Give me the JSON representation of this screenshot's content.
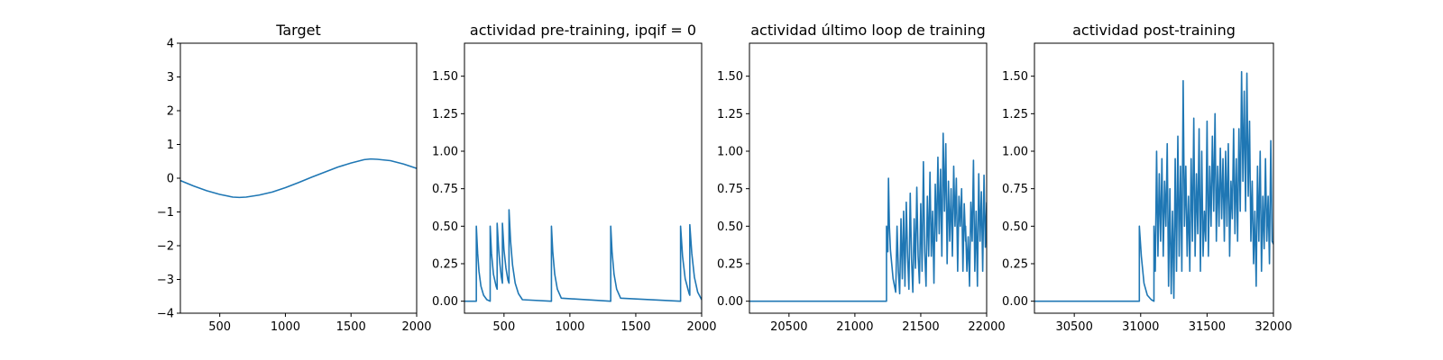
{
  "colors": {
    "line": "#1f77b4",
    "axis": "#000000",
    "background": "#ffffff"
  },
  "chart_data": [
    {
      "type": "line",
      "title": "Target",
      "xlabel": "",
      "ylabel": "",
      "xlim": [
        200,
        2000
      ],
      "ylim": [
        -4,
        4
      ],
      "xticks": [
        500,
        1000,
        1500,
        2000
      ],
      "yticks": [
        -4,
        -3,
        -2,
        -1,
        0,
        1,
        2,
        3,
        4
      ],
      "ytick_labels": [
        "−4",
        "−3",
        "−2",
        "−1",
        "0",
        "1",
        "2",
        "3",
        "4"
      ],
      "grid": false,
      "series": [
        {
          "x": [
            200,
            300,
            400,
            500,
            600,
            650,
            700,
            800,
            900,
            1000,
            1100,
            1200,
            1300,
            1400,
            1500,
            1600,
            1650,
            1700,
            1800,
            1900,
            2000
          ],
          "y": [
            -0.07,
            -0.23,
            -0.37,
            -0.48,
            -0.56,
            -0.57,
            -0.56,
            -0.5,
            -0.41,
            -0.28,
            -0.13,
            0.03,
            0.18,
            0.33,
            0.45,
            0.55,
            0.57,
            0.56,
            0.52,
            0.42,
            0.29
          ]
        }
      ]
    },
    {
      "type": "line",
      "title": "actividad pre-training, ipqif = 0",
      "xlabel": "",
      "ylabel": "",
      "xlim": [
        200,
        2000
      ],
      "ylim": [
        -0.08,
        1.72
      ],
      "xticks": [
        500,
        1000,
        1500,
        2000
      ],
      "yticks": [
        0.0,
        0.25,
        0.5,
        0.75,
        1.0,
        1.25,
        1.5
      ],
      "ytick_labels": [
        "0.00",
        "0.25",
        "0.50",
        "0.75",
        "1.00",
        "1.25",
        "1.50"
      ],
      "grid": false,
      "series": [
        {
          "x": [
            200,
            290,
            290,
            300,
            310,
            325,
            345,
            370,
            395,
            395,
            405,
            420,
            440,
            448,
            448,
            460,
            470,
            480,
            488,
            488,
            500,
            515,
            530,
            538,
            538,
            550,
            565,
            585,
            610,
            640,
            860,
            860,
            870,
            885,
            905,
            935,
            1310,
            1310,
            1320,
            1335,
            1355,
            1385,
            1840,
            1840,
            1855,
            1875,
            1905,
            1910,
            1910,
            1925,
            1945,
            1970,
            2000
          ],
          "y": [
            0,
            0,
            0.5,
            0.32,
            0.2,
            0.1,
            0.04,
            0.01,
            0.0,
            0.5,
            0.32,
            0.18,
            0.1,
            0.08,
            0.52,
            0.34,
            0.24,
            0.16,
            0.12,
            0.52,
            0.34,
            0.22,
            0.14,
            0.12,
            0.61,
            0.4,
            0.24,
            0.12,
            0.05,
            0.01,
            0,
            0.5,
            0.33,
            0.18,
            0.08,
            0.02,
            0,
            0.5,
            0.33,
            0.18,
            0.08,
            0.02,
            0,
            0.5,
            0.3,
            0.15,
            0.05,
            0.04,
            0.51,
            0.32,
            0.16,
            0.06,
            0.01
          ]
        }
      ]
    },
    {
      "type": "line",
      "title": "actividad último loop de training",
      "xlabel": "",
      "ylabel": "",
      "xlim": [
        20200,
        22000
      ],
      "ylim": [
        -0.08,
        1.72
      ],
      "xticks": [
        20500,
        21000,
        21500,
        22000
      ],
      "yticks": [
        0.0,
        0.25,
        0.5,
        0.75,
        1.0,
        1.25,
        1.5
      ],
      "ytick_labels": [
        "0.00",
        "0.25",
        "0.50",
        "0.75",
        "1.00",
        "1.25",
        "1.50"
      ],
      "grid": false,
      "series": [
        {
          "x": [
            20200,
            21240,
            21240,
            21250,
            21255,
            21262,
            21270,
            21290,
            21310,
            21320,
            21330,
            21340,
            21350,
            21360,
            21370,
            21380,
            21390,
            21400,
            21410,
            21420,
            21430,
            21440,
            21450,
            21460,
            21470,
            21480,
            21490,
            21500,
            21510,
            21520,
            21530,
            21540,
            21550,
            21560,
            21570,
            21580,
            21590,
            21600,
            21610,
            21620,
            21630,
            21640,
            21650,
            21660,
            21670,
            21680,
            21690,
            21700,
            21710,
            21720,
            21730,
            21740,
            21750,
            21760,
            21770,
            21780,
            21790,
            21800,
            21810,
            21820,
            21830,
            21840,
            21840,
            21850,
            21860,
            21870,
            21880,
            21890,
            21900,
            21910,
            21920,
            21930,
            21940,
            21950,
            21960,
            21970,
            21980,
            21990,
            22000
          ],
          "y": [
            0,
            0,
            0.5,
            0.33,
            0.82,
            0.5,
            0.34,
            0.15,
            0.06,
            0.5,
            0.2,
            0.05,
            0.55,
            0.15,
            0.6,
            0.1,
            0.66,
            0.3,
            0.08,
            0.72,
            0.28,
            0.06,
            0.55,
            0.22,
            0.76,
            0.3,
            0.12,
            0.65,
            0.2,
            0.93,
            0.33,
            0.1,
            0.7,
            0.3,
            0.86,
            0.3,
            0.6,
            0.12,
            0.78,
            0.4,
            0.96,
            0.45,
            0.88,
            0.3,
            1.12,
            0.6,
            1.05,
            0.25,
            0.8,
            0.4,
            0.75,
            0.3,
            0.9,
            0.5,
            0.82,
            0.2,
            0.7,
            0.5,
            0.75,
            0.2,
            0.65,
            0.4,
            0.5,
            0.2,
            0.43,
            0.1,
            0.66,
            0.4,
            0.94,
            0.2,
            0.6,
            0.1,
            0.85,
            0.4,
            0.73,
            0.2,
            0.84,
            0.36,
            0.66
          ]
        }
      ]
    },
    {
      "type": "line",
      "title": "actividad post-training",
      "xlabel": "",
      "ylabel": "",
      "xlim": [
        30200,
        32000
      ],
      "ylim": [
        -0.08,
        1.72
      ],
      "xticks": [
        30500,
        31000,
        31500,
        32000
      ],
      "yticks": [
        0.0,
        0.25,
        0.5,
        0.75,
        1.0,
        1.25,
        1.5
      ],
      "ytick_labels": [
        "0.00",
        "0.25",
        "0.50",
        "0.75",
        "1.00",
        "1.25",
        "1.50"
      ],
      "grid": false,
      "series": [
        {
          "x": [
            30200,
            30990,
            30990,
            31005,
            31025,
            31050,
            31080,
            31100,
            31100,
            31110,
            31120,
            31130,
            31140,
            31150,
            31160,
            31170,
            31180,
            31190,
            31200,
            31210,
            31220,
            31230,
            31240,
            31250,
            31260,
            31270,
            31280,
            31290,
            31300,
            31310,
            31320,
            31330,
            31340,
            31350,
            31360,
            31370,
            31380,
            31390,
            31400,
            31410,
            31420,
            31430,
            31440,
            31450,
            31460,
            31470,
            31480,
            31490,
            31500,
            31510,
            31520,
            31530,
            31540,
            31550,
            31560,
            31570,
            31580,
            31590,
            31600,
            31610,
            31620,
            31630,
            31640,
            31650,
            31660,
            31670,
            31680,
            31690,
            31700,
            31710,
            31720,
            31730,
            31740,
            31750,
            31760,
            31770,
            31780,
            31790,
            31800,
            31810,
            31820,
            31830,
            31840,
            31850,
            31860,
            31870,
            31880,
            31890,
            31900,
            31910,
            31920,
            31930,
            31940,
            31950,
            31960,
            31970,
            31980,
            31990,
            32000
          ],
          "y": [
            0,
            0,
            0.5,
            0.3,
            0.12,
            0.04,
            0.01,
            0.0,
            0.5,
            0.2,
            1.0,
            0.3,
            0.85,
            0.4,
            0.95,
            0.3,
            0.8,
            0.5,
            1.05,
            0.1,
            0.75,
            0.05,
            0.6,
            0.02,
            0.95,
            0.2,
            1.1,
            0.3,
            0.9,
            0.2,
            1.47,
            0.5,
            0.9,
            0.3,
            0.7,
            0.2,
            0.95,
            0.4,
            1.22,
            0.3,
            0.85,
            0.45,
            1.15,
            0.2,
            1.0,
            0.3,
            0.6,
            0.4,
            1.2,
            0.3,
            0.9,
            0.5,
            1.1,
            0.6,
            1.25,
            0.4,
            0.9,
            0.5,
            1.02,
            0.55,
            0.95,
            0.4,
            1.0,
            0.5,
            1.05,
            0.3,
            0.8,
            0.55,
            1.15,
            0.45,
            0.95,
            0.4,
            1.15,
            0.6,
            1.53,
            0.8,
            1.4,
            0.6,
            1.52,
            0.7,
            1.2,
            0.4,
            0.8,
            0.25,
            0.6,
            0.1,
            0.9,
            0.4,
            1.0,
            0.2,
            0.7,
            0.35,
            0.95,
            0.4,
            0.7,
            0.25,
            1.07,
            0.4,
            0.38
          ]
        }
      ]
    }
  ]
}
